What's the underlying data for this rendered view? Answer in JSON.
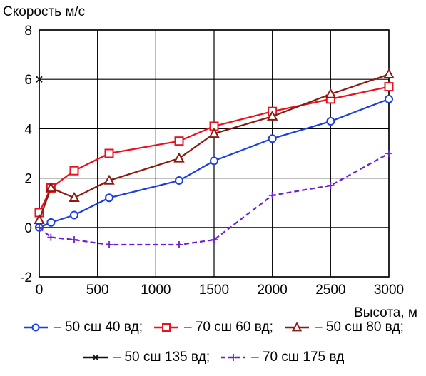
{
  "chart_data": {
    "type": "line",
    "title": "Скорость м/с",
    "xlabel": "Высота, м",
    "ylabel": "",
    "xlim": [
      0,
      3000
    ],
    "ylim": [
      -2,
      8
    ],
    "xticks": [
      "0",
      "500",
      "1000",
      "1500",
      "2000",
      "2500",
      "3000"
    ],
    "yticks": [
      "-2",
      "0",
      "2",
      "4",
      "6",
      "8"
    ],
    "grid": true,
    "legend_position": "bottom",
    "series": [
      {
        "name": "– 50 сш 40 вд;",
        "color": "#1a3fe0",
        "marker": "circle",
        "dash": "solid",
        "x": [
          0,
          100,
          300,
          600,
          1200,
          1500,
          2000,
          2500,
          3000
        ],
        "y": [
          0.0,
          0.2,
          0.5,
          1.2,
          1.9,
          2.7,
          3.6,
          4.3,
          5.2
        ]
      },
      {
        "name": "– 70 сш 60 вд;",
        "color": "#e8121e",
        "marker": "square",
        "dash": "solid",
        "x": [
          0,
          100,
          300,
          600,
          1200,
          1500,
          2000,
          2500,
          3000
        ],
        "y": [
          0.6,
          1.6,
          2.3,
          3.0,
          3.5,
          4.1,
          4.7,
          5.2,
          5.7
        ]
      },
      {
        "name": "– 50 сш 80 вд;",
        "color": "#8b1a12",
        "marker": "triangle",
        "dash": "solid",
        "x": [
          0,
          100,
          300,
          600,
          1200,
          1500,
          2000,
          2500,
          3000
        ],
        "y": [
          0.3,
          1.6,
          1.2,
          1.9,
          2.8,
          3.8,
          4.5,
          5.4,
          6.2
        ]
      },
      {
        "name": "– 50 сш 135 вд;",
        "color": "#111111",
        "marker": "x",
        "dash": "solid",
        "x": [
          0
        ],
        "y": [
          6.0
        ]
      },
      {
        "name": "– 70 сш 175 вд",
        "color": "#6a1fd0",
        "marker": "plus",
        "dash": "dashed",
        "x": [
          0,
          100,
          300,
          600,
          1200,
          1500,
          2000,
          2500,
          3000
        ],
        "y": [
          0.0,
          -0.4,
          -0.5,
          -0.7,
          -0.7,
          -0.5,
          1.3,
          1.7,
          3.0
        ]
      }
    ]
  }
}
